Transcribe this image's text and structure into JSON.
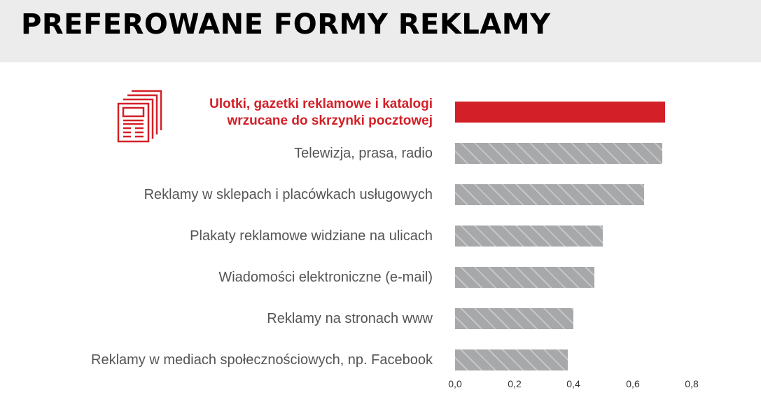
{
  "header": {
    "title": "PREFEROWANE FORMY REKLAMY"
  },
  "colors": {
    "highlight": "#d32028",
    "bar": "#a7a8aa",
    "header_bg": "#ececec"
  },
  "icon": "newspaper-stack-icon",
  "chart_data": {
    "type": "bar",
    "orientation": "horizontal",
    "title": "PREFEROWANE FORMY REKLAMY",
    "categories": [
      "Ulotki, gazetki reklamowe i katalogi wrzucane do skrzynki pocztowej",
      "Telewizja, prasa, radio",
      "Reklamy w sklepach i placówkach usługowych",
      "Plakaty reklamowe widziane na ulicach",
      "Wiadomości elektroniczne (e-mail)",
      "Reklamy na stronach www",
      "Reklamy w mediach społecznościowych, np. Facebook"
    ],
    "values": [
      0.71,
      0.7,
      0.64,
      0.5,
      0.47,
      0.4,
      0.38
    ],
    "highlighted_index": 0,
    "xlabel": "",
    "ylabel": "",
    "xlim": [
      0.0,
      0.8
    ],
    "x_ticks": [
      "0,0",
      "0,2",
      "0,4",
      "0,6",
      "0,8"
    ],
    "grid": false,
    "legend": null
  },
  "labels": {
    "first_line1": "Ulotki, gazetki reklamowe i katalogi",
    "first_line2": "wrzucane do skrzynki pocztowej",
    "r1": "Telewizja, prasa, radio",
    "r2": "Reklamy w sklepach i placówkach usługowych",
    "r3": "Plakaty reklamowe widziane na ulicach",
    "r4": "Wiadomości elektroniczne (e-mail)",
    "r5": "Reklamy na stronach www",
    "r6": "Reklamy w mediach społecznościowych, np. Facebook"
  }
}
